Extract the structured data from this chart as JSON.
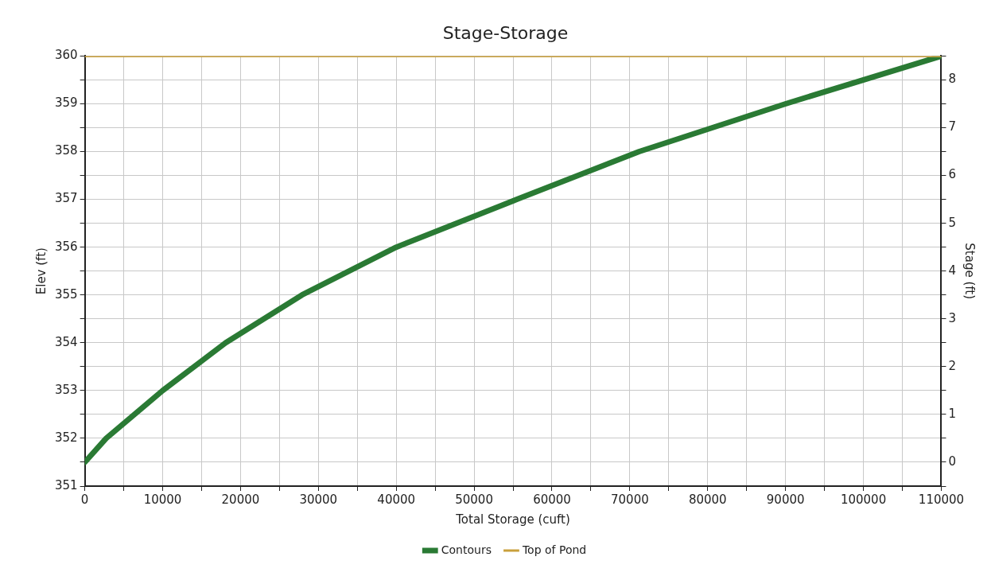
{
  "chart_data": {
    "type": "line",
    "title": "Stage-Storage",
    "xlabel": "Total Storage (cuft)",
    "ylabel": "Elev (ft)",
    "y2label": "Stage (ft)",
    "series": [
      {
        "name": "Contours",
        "color": "#2a7a34",
        "x": [
          0,
          2750,
          10000,
          18100,
          27900,
          40000,
          55500,
          71200,
          90000,
          110000
        ],
        "values": [
          351.5,
          352,
          353,
          354,
          355,
          356,
          357,
          358,
          359,
          360
        ]
      },
      {
        "name": "Top of Pond",
        "color": "#c9a03c",
        "x": [
          0,
          110000
        ],
        "values": [
          360,
          360
        ]
      }
    ],
    "xlim": [
      0,
      110000
    ],
    "xticks": [
      0,
      {
        "value": 5000,
        "label": null
      },
      10000,
      {
        "value": 15000,
        "label": null
      },
      20000,
      {
        "value": 25000,
        "label": null
      },
      30000,
      {
        "value": 35000,
        "label": null
      },
      40000,
      {
        "value": 45000,
        "label": null
      },
      50000,
      {
        "value": 55000,
        "label": null
      },
      60000,
      {
        "value": 65000,
        "label": null
      },
      70000,
      {
        "value": 75000,
        "label": null
      },
      80000,
      {
        "value": 85000,
        "label": null
      },
      90000,
      {
        "value": 95000,
        "label": null
      },
      100000,
      {
        "value": 105000,
        "label": null
      },
      110000
    ],
    "ylim": [
      351,
      360
    ],
    "yticks": [
      351,
      {
        "value": 351.5,
        "label": null
      },
      352,
      {
        "value": 352.5,
        "label": null
      },
      353,
      {
        "value": 353.5,
        "label": null
      },
      354,
      {
        "value": 354.5,
        "label": null
      },
      355,
      {
        "value": 355.5,
        "label": null
      },
      356,
      {
        "value": 356.5,
        "label": null
      },
      357,
      {
        "value": 357.5,
        "label": null
      },
      358,
      {
        "value": 358.5,
        "label": null
      },
      359,
      {
        "value": 359.5,
        "label": null
      },
      360
    ],
    "y2lim": [
      -0.5,
      8.5
    ],
    "y2ticks": [
      {
        "value": -0.5,
        "label": null
      },
      0,
      {
        "value": 0.5,
        "label": null
      },
      1,
      {
        "value": 1.5,
        "label": null
      },
      2,
      {
        "value": 2.5,
        "label": null
      },
      3,
      {
        "value": 3.5,
        "label": null
      },
      4,
      {
        "value": 4.5,
        "label": null
      },
      5,
      {
        "value": 5.5,
        "label": null
      },
      6,
      {
        "value": 6.5,
        "label": null
      },
      7,
      {
        "value": 7.5,
        "label": null
      },
      8,
      {
        "value": 8.5,
        "label": null
      }
    ],
    "grid": true,
    "legend": "bottom",
    "marker": "none",
    "line_style": "solid"
  }
}
